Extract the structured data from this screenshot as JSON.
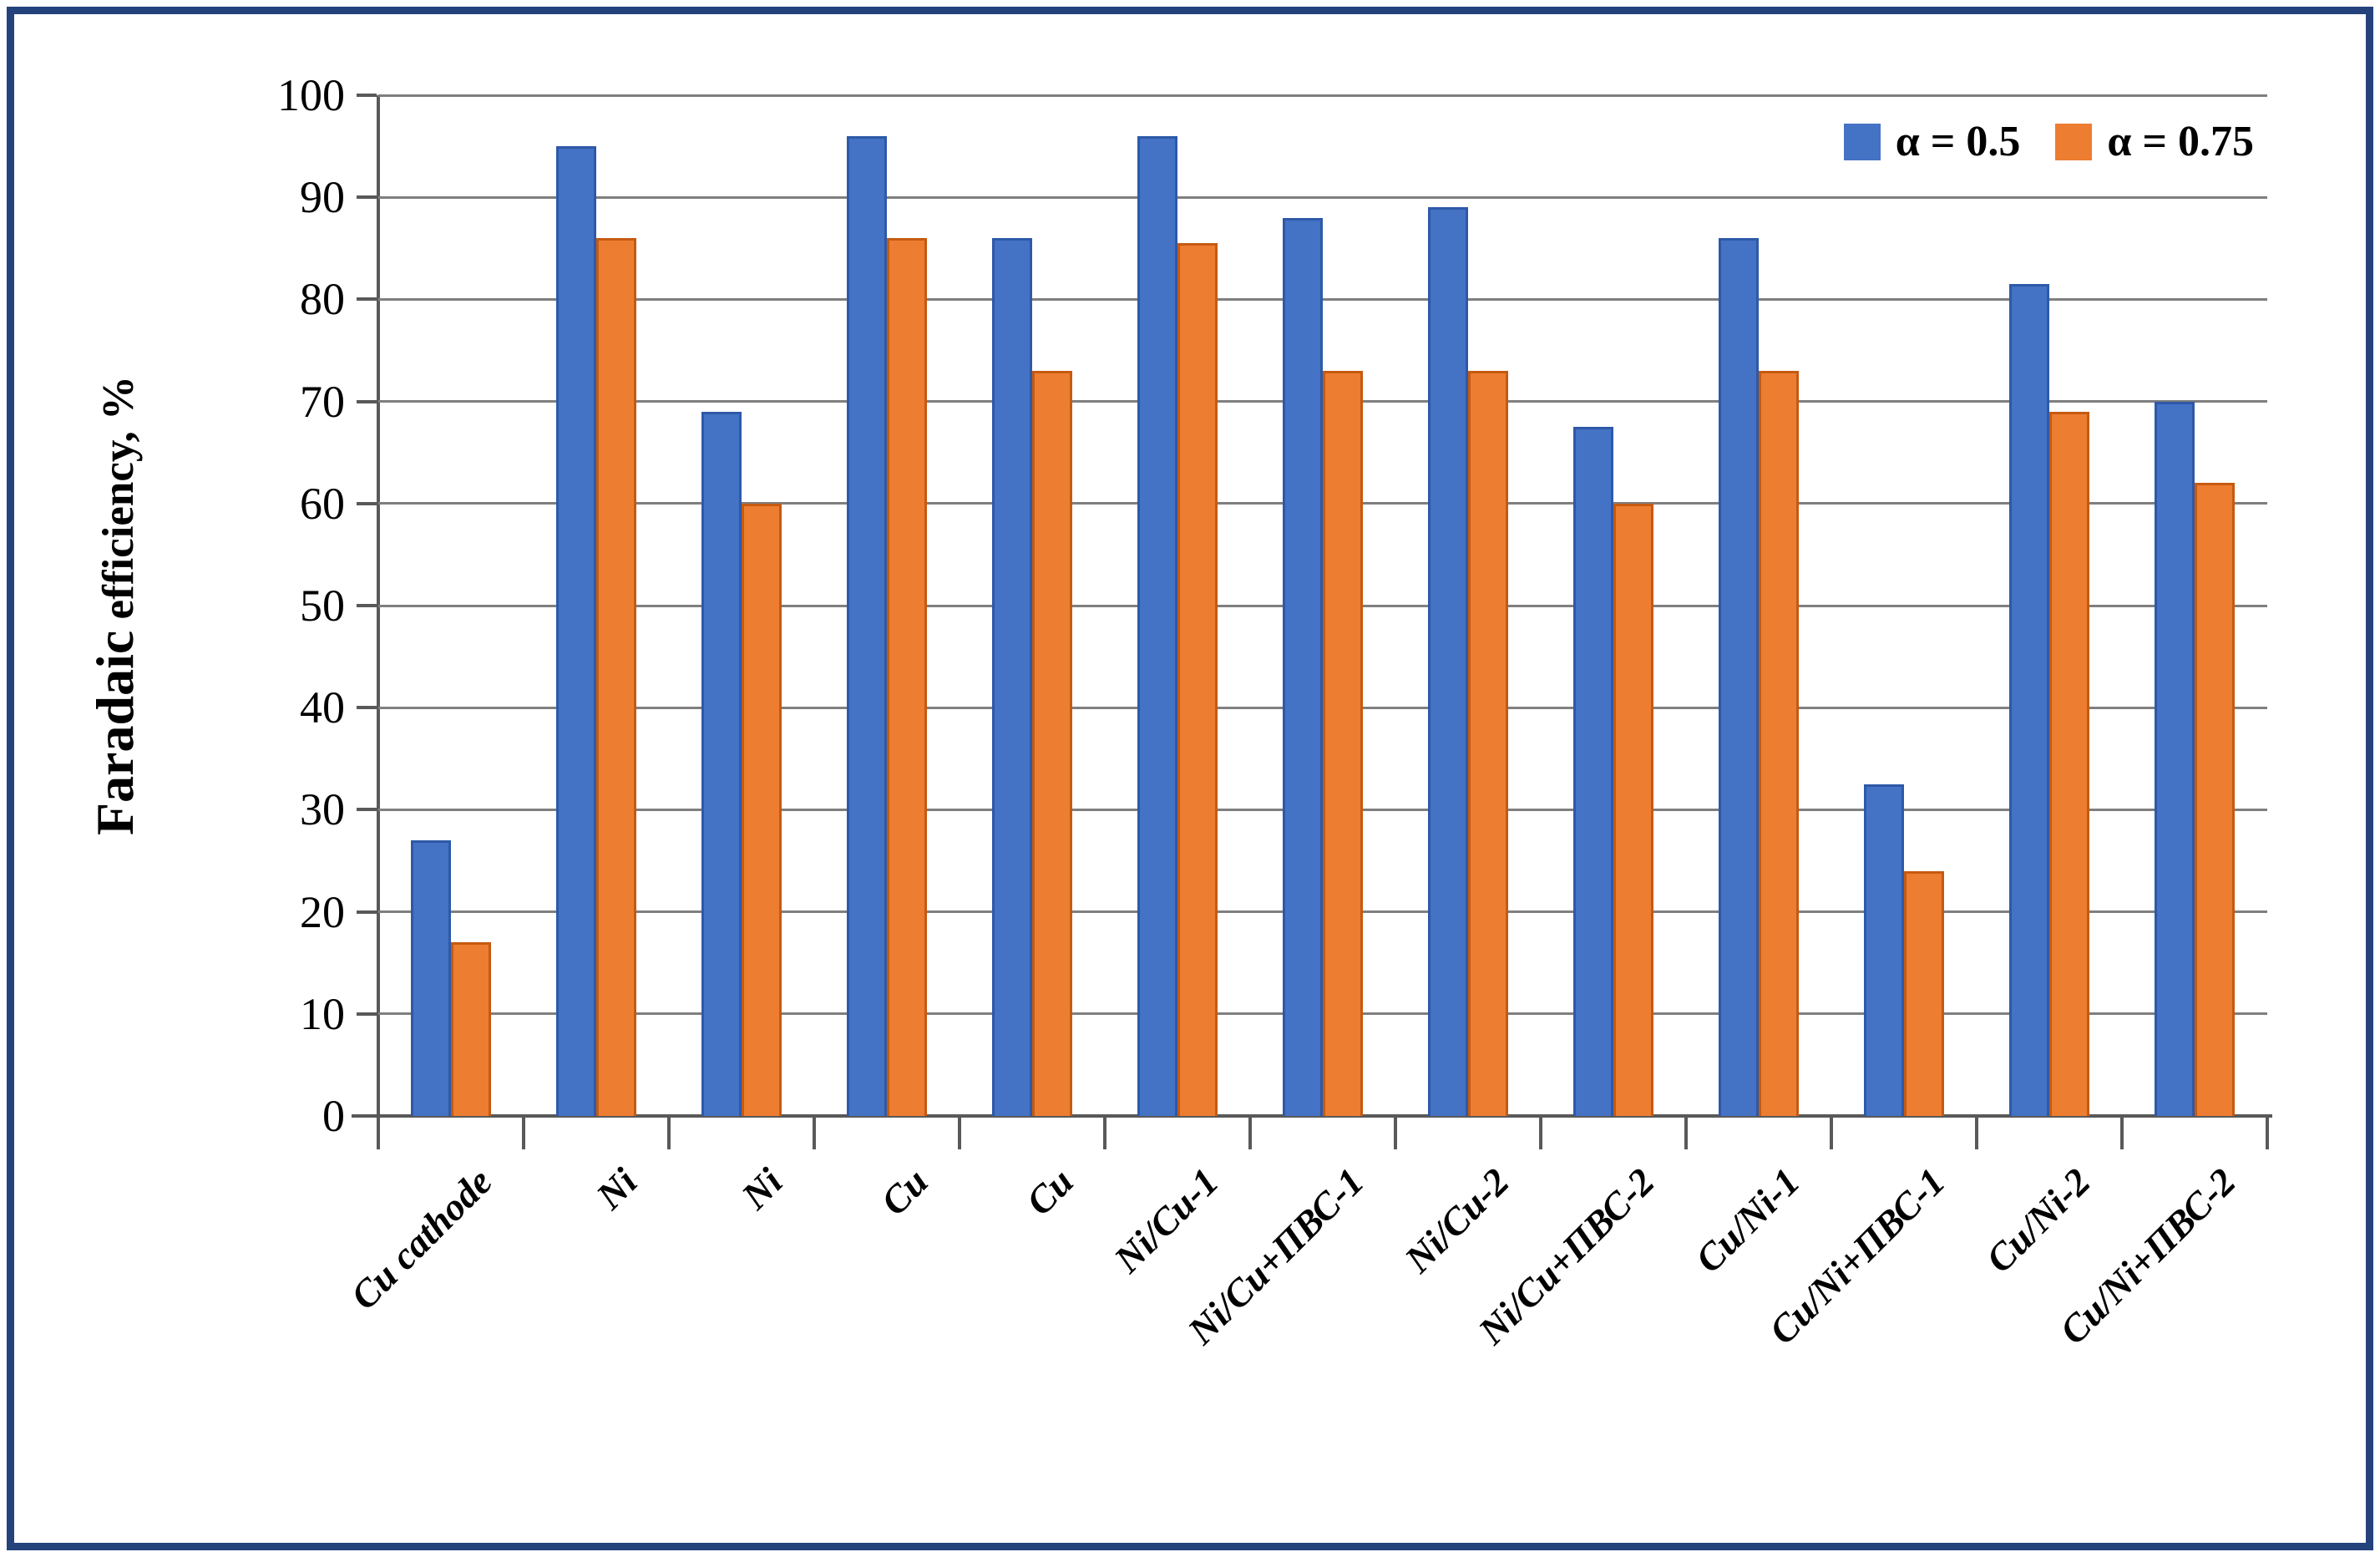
{
  "figure": {
    "border_color": "#24427B",
    "background": "#FFFFFF"
  },
  "chart_data": {
    "type": "bar",
    "title": "",
    "ylabel": "Faradaic efficiency, %",
    "ylabel_main": "Faradaic",
    "ylabel_rest": " efficiency, %",
    "categories": [
      "Cu cathode",
      "Ni",
      "Ni",
      "Cu",
      "Cu",
      "Ni/Cu-1",
      "Ni/Cu+ПВС-1",
      "Ni/Cu-2",
      "Ni/Cu+ПВС-2",
      "Cu/Ni-1",
      "Cu/Ni+ПВС-1",
      "Cu/Ni-2",
      "Cu/Ni+ПВС-2"
    ],
    "series": [
      {
        "name": "α = 0.5",
        "color": "#4472C4",
        "border_color": "#2E59A8",
        "values": [
          27,
          95,
          69,
          96,
          86,
          96,
          88,
          89,
          67.5,
          86,
          32.5,
          81.5,
          70
        ]
      },
      {
        "name": "α = 0.75",
        "color": "#ED7D31",
        "border_color": "#C55A11",
        "values": [
          17,
          86,
          60,
          86,
          73,
          85.5,
          73,
          73,
          60,
          73,
          24,
          69,
          62
        ]
      }
    ],
    "ylim": [
      0,
      100
    ],
    "yticks": [
      0,
      10,
      20,
      30,
      40,
      50,
      60,
      70,
      80,
      90,
      100
    ],
    "grid": "horizontal",
    "legend_position": "top-right",
    "axis_color": "#595959",
    "grid_color": "#7F7F7F",
    "text_color": "#000000"
  }
}
